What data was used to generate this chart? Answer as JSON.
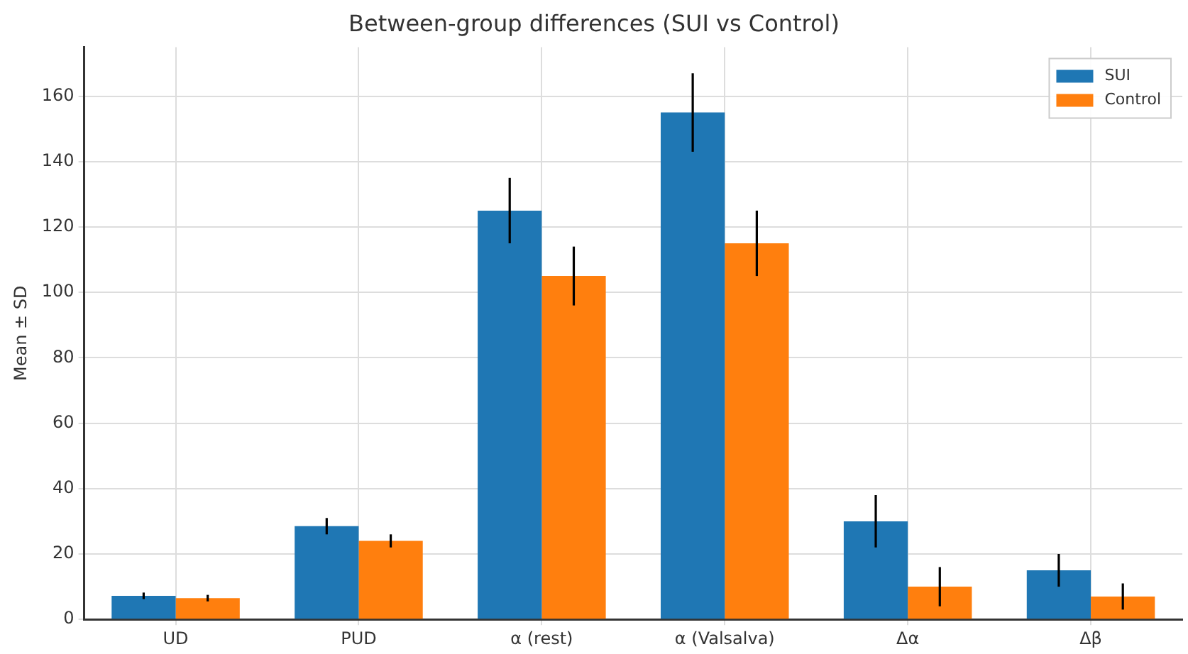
{
  "chart_data": {
    "type": "bar",
    "title": "Between-group differences (SUI vs Control)",
    "ylabel": "Mean ± SD",
    "categories": [
      "UD",
      "PUD",
      "α (rest)",
      "α (Valsalva)",
      "Δα",
      "Δβ"
    ],
    "series": [
      {
        "name": "SUI",
        "color": "#1f77b4",
        "values": [
          7.2,
          28.5,
          125,
          155,
          30,
          15
        ],
        "errors": [
          1,
          2.5,
          10,
          12,
          8,
          5
        ]
      },
      {
        "name": "Control",
        "color": "#ff7f0e",
        "values": [
          6.5,
          24,
          105,
          115,
          10,
          7
        ],
        "errors": [
          1,
          2,
          9,
          10,
          6,
          4
        ]
      }
    ],
    "ylim": [
      0,
      175
    ],
    "yticks": [
      0,
      20,
      40,
      60,
      80,
      100,
      120,
      140,
      160
    ],
    "grid": true,
    "legend": "top right"
  }
}
